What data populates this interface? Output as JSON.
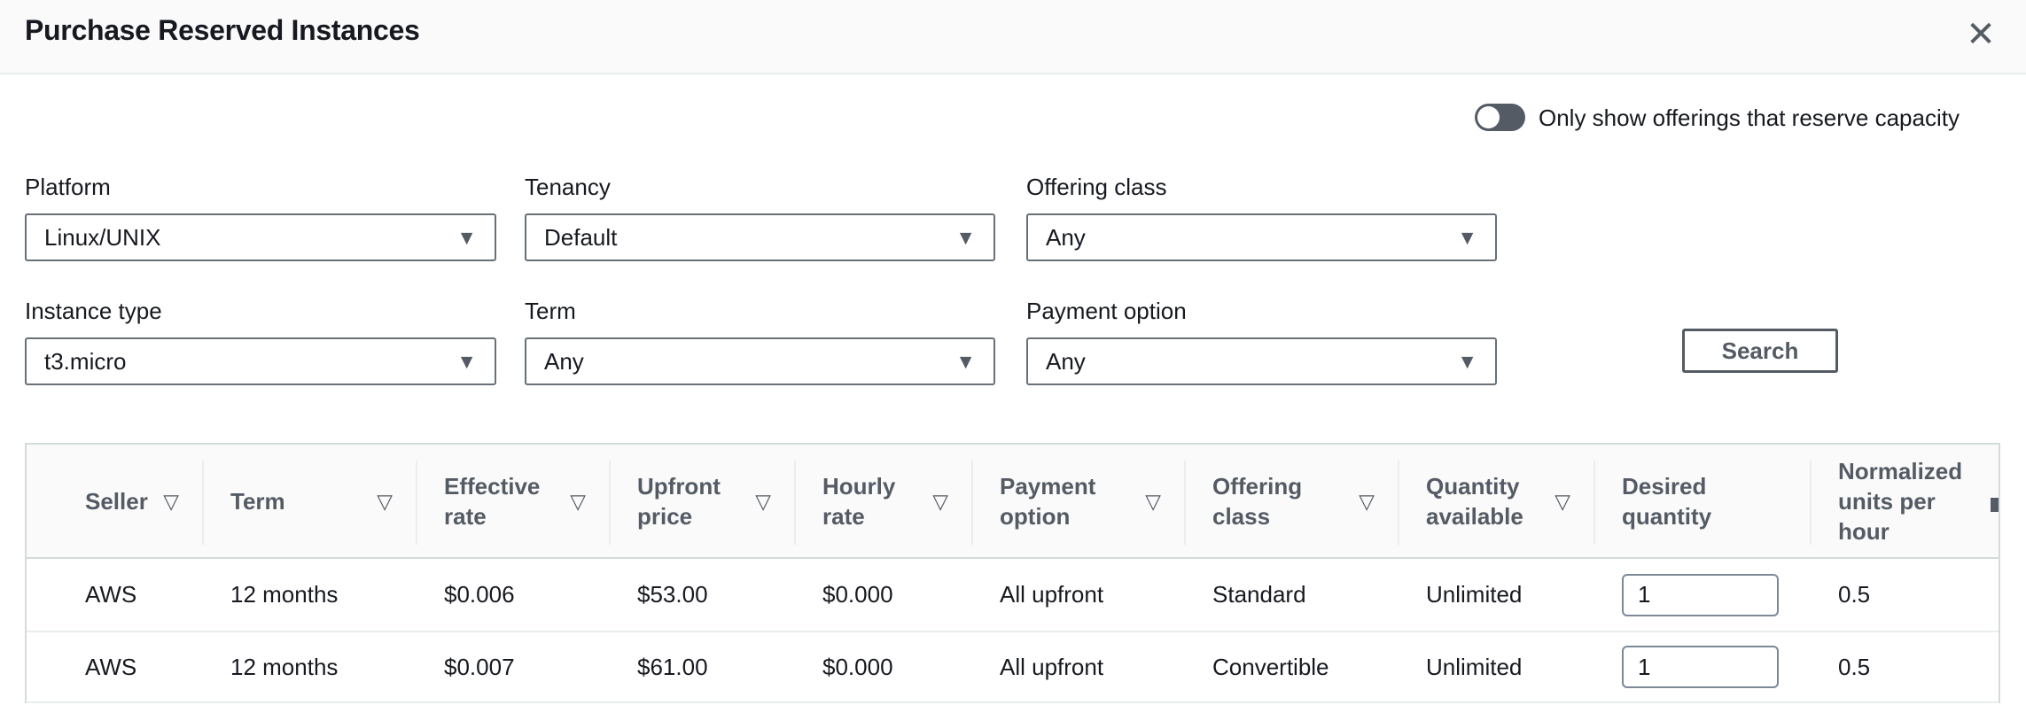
{
  "header": {
    "title": "Purchase Reserved Instances",
    "close": "✕"
  },
  "capacity_toggle": {
    "label": "Only show offerings that reserve capacity",
    "state": "off"
  },
  "filters": [
    {
      "id": "platform",
      "label": "Platform",
      "value": "Linux/UNIX"
    },
    {
      "id": "tenancy",
      "label": "Tenancy",
      "value": "Default"
    },
    {
      "id": "offering-class",
      "label": "Offering class",
      "value": "Any"
    },
    {
      "id": "instance-type",
      "label": "Instance type",
      "value": "t3.micro"
    },
    {
      "id": "term",
      "label": "Term",
      "value": "Any"
    },
    {
      "id": "payment-option",
      "label": "Payment option",
      "value": "Any"
    }
  ],
  "search_button": {
    "label": "Search"
  },
  "icons": {
    "sort": "▽",
    "dropdown": "▼"
  },
  "table": {
    "columns": [
      {
        "label": "Seller",
        "sortable": true
      },
      {
        "label": "Term",
        "sortable": true
      },
      {
        "label": "Effective rate",
        "sortable": true
      },
      {
        "label": "Upfront price",
        "sortable": true
      },
      {
        "label": "Hourly rate",
        "sortable": true
      },
      {
        "label": "Payment option",
        "sortable": true
      },
      {
        "label": "Offering class",
        "sortable": true
      },
      {
        "label": "Quantity available",
        "sortable": true
      },
      {
        "label": "Desired quantity",
        "sortable": false
      },
      {
        "label": "Normalized units per hour",
        "sortable": false
      }
    ],
    "rows": [
      {
        "seller": "AWS",
        "term": "12 months",
        "effective_rate": "$0.006",
        "upfront_price": "$53.00",
        "hourly_rate": "$0.000",
        "payment_option": "All upfront",
        "offering_class": "Standard",
        "quantity_available": "Unlimited",
        "desired_quantity": "1",
        "normalized_units": "0.5"
      },
      {
        "seller": "AWS",
        "term": "12 months",
        "effective_rate": "$0.007",
        "upfront_price": "$61.00",
        "hourly_rate": "$0.000",
        "payment_option": "All upfront",
        "offering_class": "Convertible",
        "quantity_available": "Unlimited",
        "desired_quantity": "1",
        "normalized_units": "0.5"
      }
    ]
  },
  "colors": {
    "text_primary": "#16191f",
    "text_secondary": "#545b64",
    "header_bg": "#fafafa",
    "divider": "#eaeded",
    "input_border": "#687078",
    "toggle_track": "#545b64"
  }
}
